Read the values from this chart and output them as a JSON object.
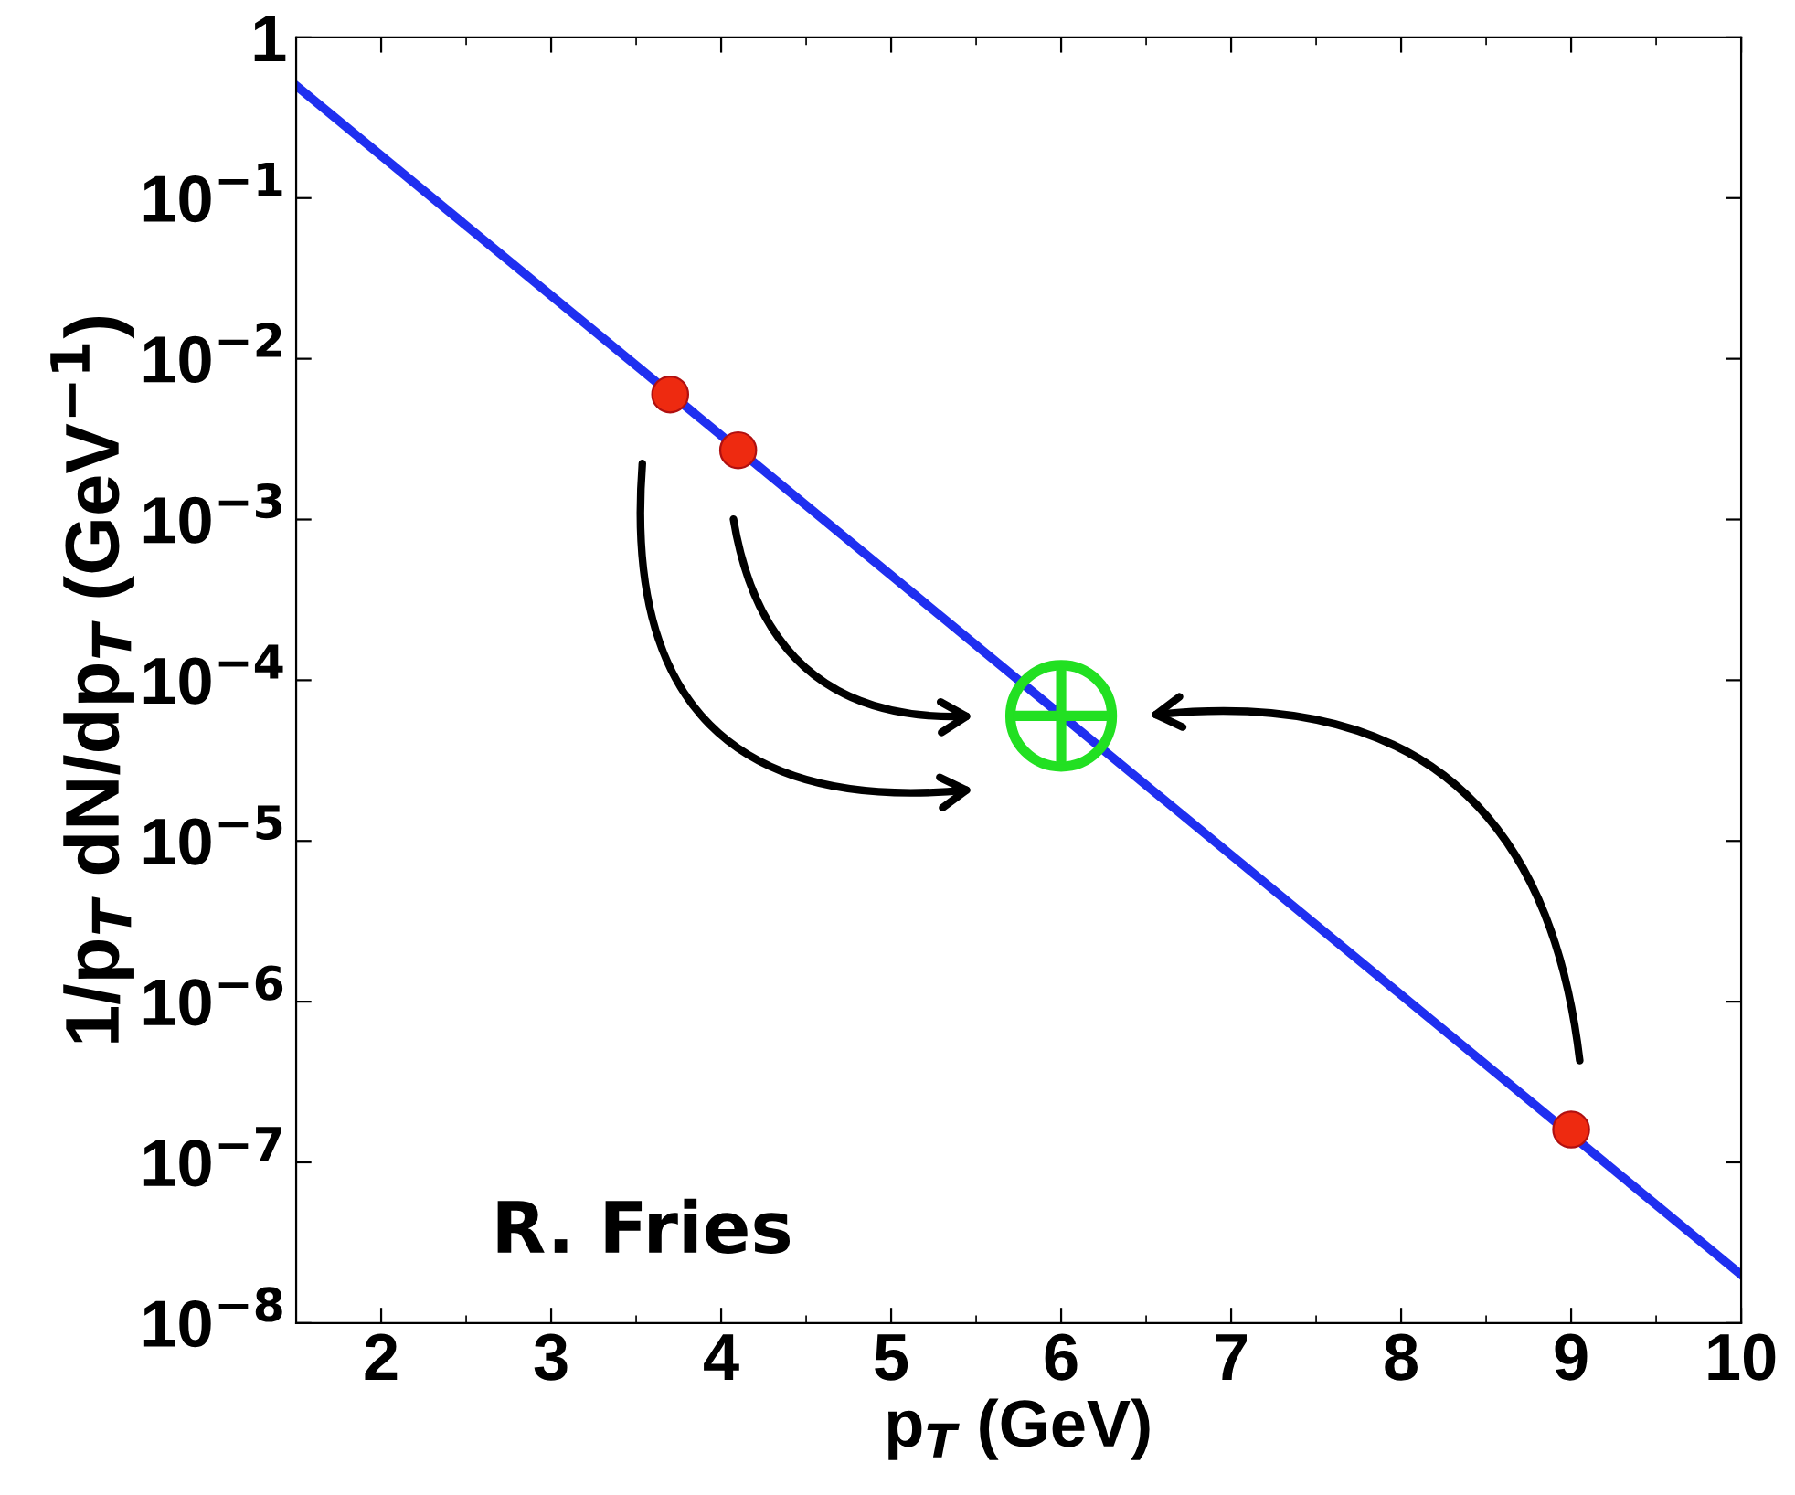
{
  "chart_data": {
    "type": "line",
    "xlabel": "p$_{T}$ (GeV)",
    "ylabel": "1/p$_{T}$ dN/dp$_{T}$ (GeV$^{−1}$)",
    "log": "y",
    "xlim": [
      1.5,
      10
    ],
    "ylim": [
      1e-08,
      1
    ],
    "xticks": [
      2,
      3,
      4,
      5,
      6,
      7,
      8,
      9,
      10
    ],
    "yticks": [
      {
        "value": 1e-08,
        "label": "10$^{−8}$"
      },
      {
        "value": 1e-07,
        "label": "10$^{−7}$"
      },
      {
        "value": 1e-06,
        "label": "10$^{−6}$"
      },
      {
        "value": 1e-05,
        "label": "10$^{−5}$"
      },
      {
        "value": 0.0001,
        "label": "10$^{−4}$"
      },
      {
        "value": 0.001,
        "label": "10$^{−3}$"
      },
      {
        "value": 0.01,
        "label": "10$^{−2}$"
      },
      {
        "value": 0.1,
        "label": "10$^{−1}$"
      },
      1
    ],
    "grid": false,
    "legend": false,
    "series": [
      {
        "color": "#1f2ff0",
        "x": [
          1.5,
          10
        ],
        "values": [
          0.5,
          2e-08
        ],
        "marker": "none"
      },
      {
        "type": "scatter",
        "color": "#ee2a10",
        "x": [
          3.7,
          4.1,
          9
        ],
        "values": [
          0.006,
          0.0027,
          1.6e-07
        ],
        "marker": "circle"
      },
      {
        "type": "scatter",
        "color": "#22e022",
        "x": [
          6
        ],
        "values": [
          6e-05
        ],
        "marker": "circle"
      }
    ],
    "annotations": [
      "R. Fries"
    ]
  }
}
